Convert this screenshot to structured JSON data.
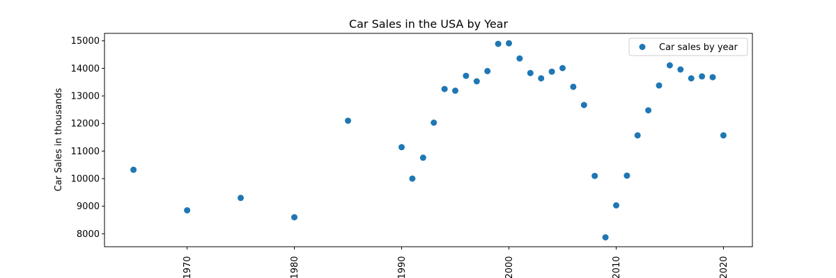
{
  "chart_data": {
    "type": "scatter",
    "title": "Car Sales in the USA by Year",
    "xlabel": "",
    "ylabel": "Car Sales in thousands",
    "xlim": [
      1962.3,
      2022.7
    ],
    "ylim": [
      7530,
      15270
    ],
    "xticks": [
      1970,
      1980,
      1990,
      2000,
      2010,
      2020
    ],
    "yticks": [
      8000,
      9000,
      10000,
      11000,
      12000,
      13000,
      14000,
      15000
    ],
    "grid": false,
    "legend_position": "top-right",
    "series": [
      {
        "name": "Car sales by year",
        "color": "#1f77b4",
        "x": [
          1965,
          1970,
          1975,
          1980,
          1985,
          1990,
          1991,
          1992,
          1993,
          1994,
          1995,
          1996,
          1997,
          1998,
          1999,
          2000,
          2001,
          2002,
          2003,
          2004,
          2005,
          2006,
          2007,
          2008,
          2009,
          2010,
          2011,
          2012,
          2013,
          2014,
          2015,
          2016,
          2017,
          2018,
          2019,
          2020
        ],
        "y": [
          10320,
          8850,
          9300,
          8600,
          12100,
          11140,
          10000,
          10760,
          12030,
          13250,
          13190,
          13730,
          13530,
          13900,
          14890,
          14910,
          14360,
          13830,
          13640,
          13880,
          14010,
          13330,
          12670,
          10100,
          7870,
          9030,
          10110,
          11570,
          12480,
          13380,
          14110,
          13960,
          13640,
          13710,
          13680,
          11570
        ]
      }
    ]
  }
}
